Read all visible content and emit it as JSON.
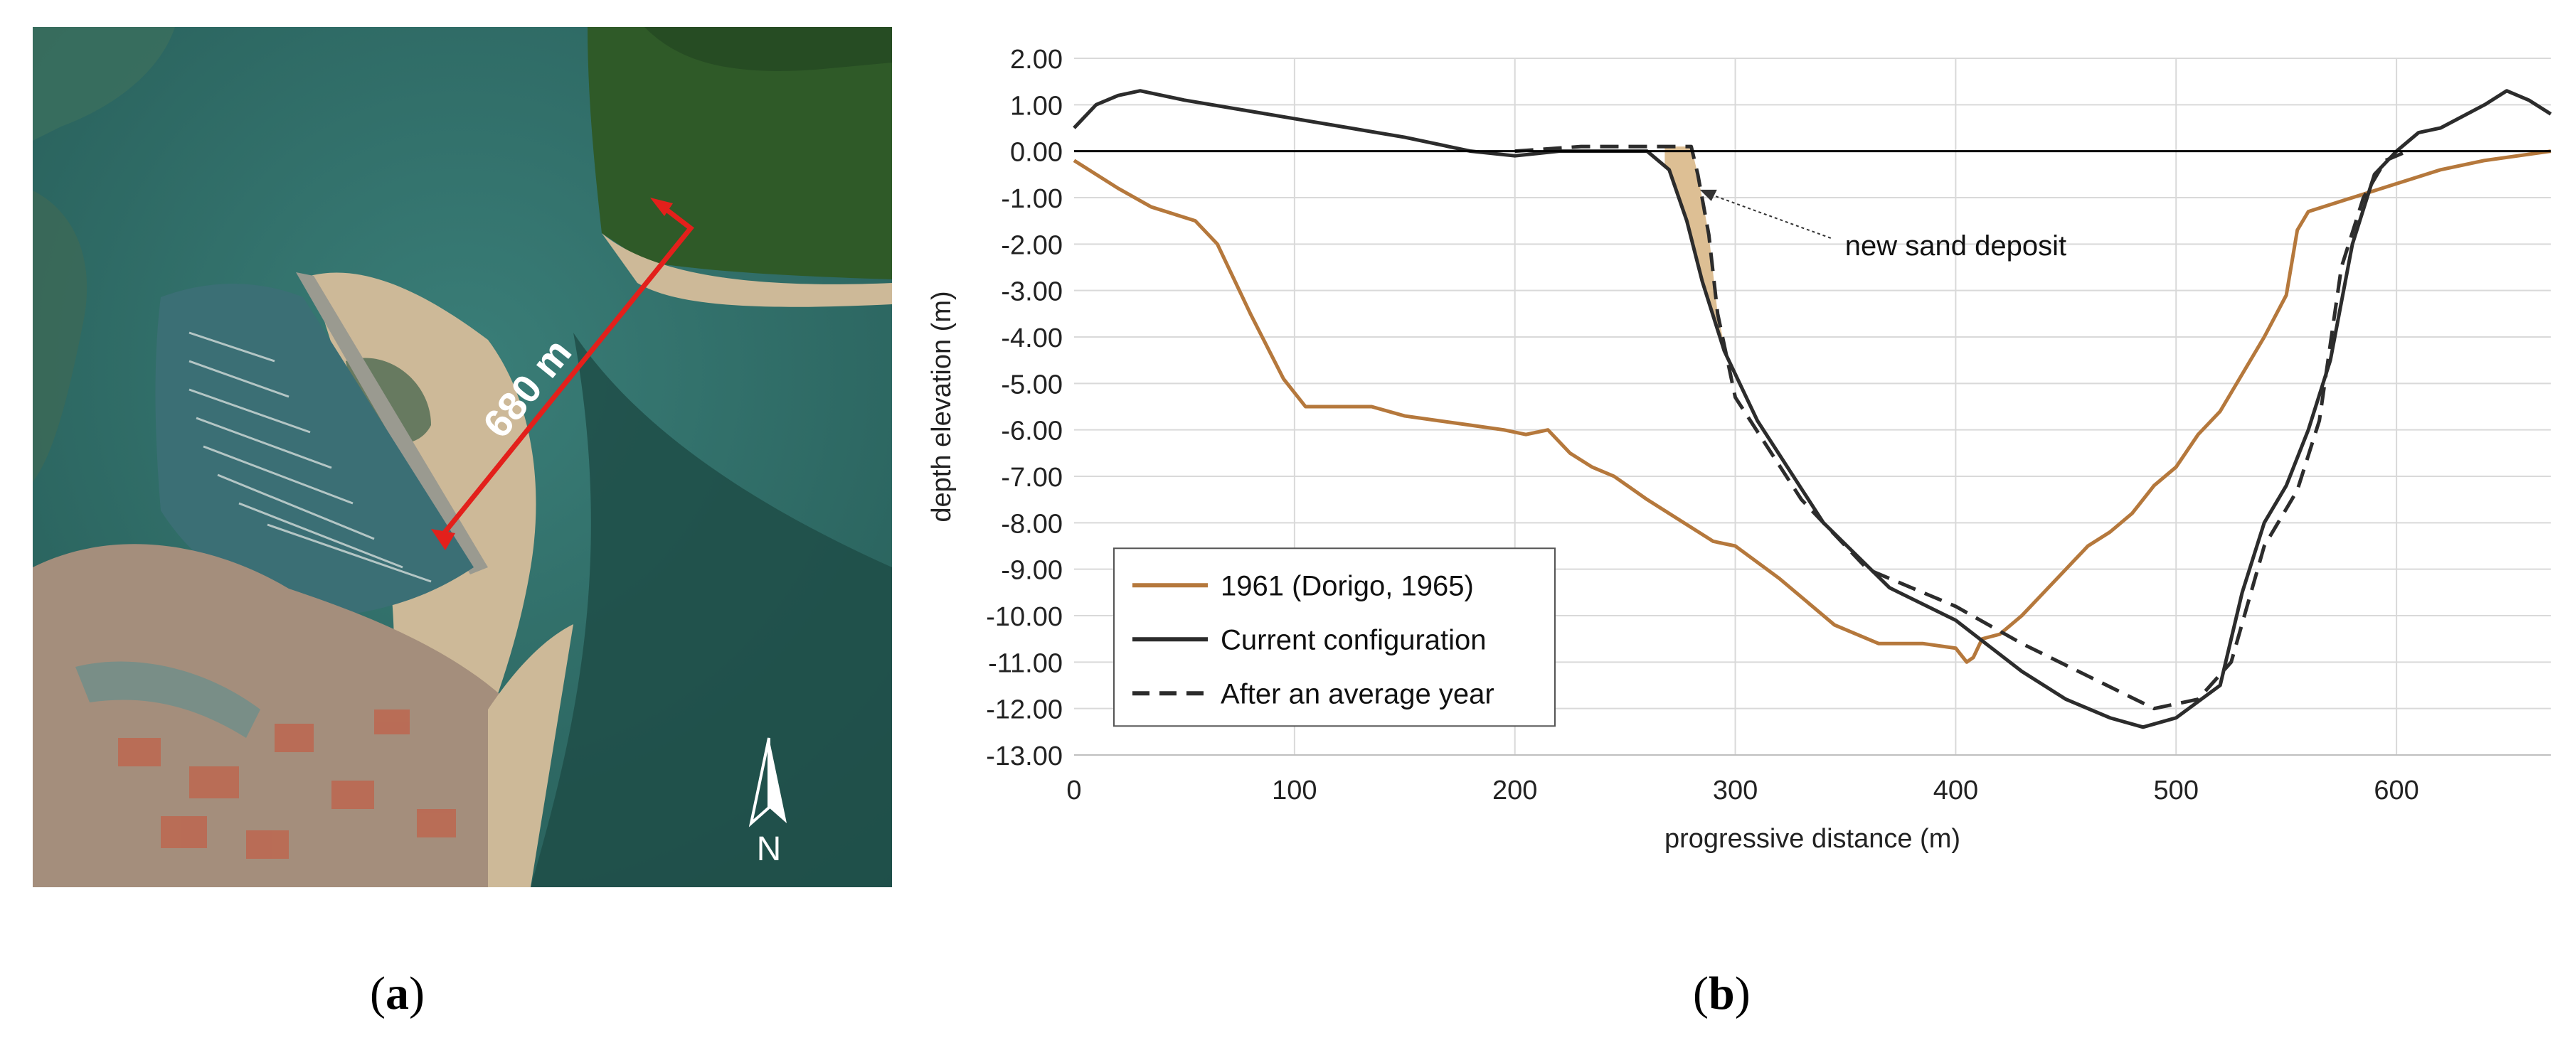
{
  "map": {
    "distance_label": "680 m",
    "north_label": "N",
    "colors": {
      "water": "#2d6e6a",
      "sea": "#24544f",
      "sand": "#cdb998",
      "green": "#2f5a28",
      "town": "#a48e7c",
      "marker": "#e3201b"
    }
  },
  "captions": {
    "a": "a",
    "b": "b"
  },
  "chart_data": {
    "type": "line",
    "title": "",
    "xlabel": "progressive distance (m)",
    "ylabel": "depth elevation (m)",
    "xlim": [
      0,
      670
    ],
    "ylim": [
      -13,
      2
    ],
    "x_ticks": [
      0,
      100,
      200,
      300,
      400,
      500,
      600
    ],
    "x_tick_labels": [
      "0",
      "100",
      "200",
      "300",
      "400",
      "500",
      "600"
    ],
    "y_ticks": [
      2,
      1,
      0,
      -1,
      -2,
      -3,
      -4,
      -5,
      -6,
      -7,
      -8,
      -9,
      -10,
      -11,
      -12,
      -13
    ],
    "y_tick_labels": [
      "2.00",
      "1.00",
      "0.00",
      "-1.00",
      "-2.00",
      "-3.00",
      "-4.00",
      "-5.00",
      "-6.00",
      "-7.00",
      "-8.00",
      "-9.00",
      "-10.00",
      "-11.00",
      "-12.00",
      "-13.00"
    ],
    "grid": true,
    "legend_position": "bottom-left",
    "annotation": {
      "text": "new sand deposit",
      "x": 282,
      "y": -0.8
    },
    "deposit_color": "#ddbf94",
    "series": [
      {
        "name": "1961 (Dorigo, 1965)",
        "color": "#b5783c",
        "style": "solid",
        "x": [
          0,
          20,
          35,
          55,
          65,
          80,
          95,
          105,
          120,
          135,
          150,
          165,
          180,
          195,
          205,
          215,
          225,
          235,
          245,
          260,
          270,
          290,
          300,
          320,
          335,
          345,
          365,
          385,
          400,
          405,
          408,
          412,
          420,
          430,
          440,
          450,
          460,
          470,
          480,
          490,
          500,
          510,
          520,
          530,
          535,
          540,
          550,
          555,
          560,
          580,
          600,
          620,
          640,
          670
        ],
        "values": [
          -0.2,
          -0.8,
          -1.2,
          -1.5,
          -2.0,
          -3.5,
          -4.9,
          -5.5,
          -5.5,
          -5.5,
          -5.7,
          -5.8,
          -5.9,
          -6.0,
          -6.1,
          -6.0,
          -6.5,
          -6.8,
          -7.0,
          -7.5,
          -7.8,
          -8.4,
          -8.5,
          -9.2,
          -9.8,
          -10.2,
          -10.6,
          -10.6,
          -10.7,
          -11.0,
          -10.9,
          -10.5,
          -10.4,
          -10.0,
          -9.5,
          -9.0,
          -8.5,
          -8.2,
          -7.8,
          -7.2,
          -6.8,
          -6.1,
          -5.6,
          -4.8,
          -4.4,
          -4.0,
          -3.1,
          -1.7,
          -1.3,
          -1.0,
          -0.7,
          -0.4,
          -0.2,
          0.0
        ]
      },
      {
        "name": "Current configuration",
        "color": "#2c2c2c",
        "style": "solid",
        "x": [
          0,
          10,
          20,
          30,
          50,
          100,
          150,
          180,
          200,
          220,
          260,
          270,
          278,
          285,
          295,
          310,
          340,
          370,
          400,
          430,
          450,
          470,
          485,
          500,
          520,
          530,
          540,
          550,
          560,
          570,
          580,
          590,
          600,
          610,
          620,
          640,
          650,
          660,
          670
        ],
        "values": [
          0.5,
          1.0,
          1.2,
          1.3,
          1.1,
          0.7,
          0.3,
          0.0,
          -0.1,
          0.0,
          0.0,
          -0.4,
          -1.5,
          -2.8,
          -4.3,
          -5.8,
          -8.0,
          -9.4,
          -10.1,
          -11.2,
          -11.8,
          -12.2,
          -12.4,
          -12.2,
          -11.5,
          -9.5,
          -8.0,
          -7.2,
          -6.0,
          -4.5,
          -2.0,
          -0.5,
          0.0,
          0.4,
          0.5,
          1.0,
          1.3,
          1.1,
          0.8
        ]
      },
      {
        "name": "After an average year",
        "color": "#2c2c2c",
        "style": "dashed",
        "x": [
          200,
          230,
          260,
          280,
          283,
          288,
          292,
          300,
          330,
          360,
          400,
          430,
          460,
          490,
          510,
          525,
          540,
          555,
          565,
          575,
          585,
          595,
          605
        ],
        "values": [
          0.0,
          0.1,
          0.1,
          0.1,
          -0.5,
          -1.8,
          -3.5,
          -5.3,
          -7.5,
          -9.0,
          -9.8,
          -10.6,
          -11.3,
          -12.0,
          -11.8,
          -11.0,
          -8.5,
          -7.3,
          -5.8,
          -2.5,
          -1.0,
          -0.2,
          0.0
        ]
      }
    ]
  }
}
